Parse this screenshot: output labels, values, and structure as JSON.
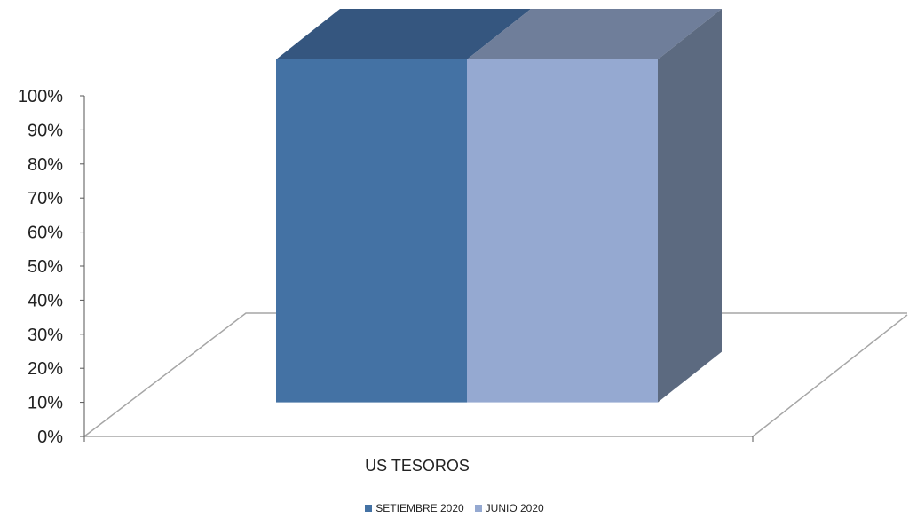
{
  "chart_data": {
    "type": "bar",
    "style": "3d-clustered-column",
    "categories": [
      "US TESOROS"
    ],
    "series": [
      {
        "name": "SETIEMBRE 2020",
        "values": [
          100
        ],
        "color": "#4472A4"
      },
      {
        "name": "JUNIO 2020",
        "values": [
          100
        ],
        "color": "#95A9D1"
      }
    ],
    "ylim": [
      0,
      100
    ],
    "yticks": [
      "0%",
      "10%",
      "20%",
      "30%",
      "40%",
      "50%",
      "60%",
      "70%",
      "80%",
      "90%",
      "100%"
    ],
    "legend_position": "bottom-center",
    "grid": false,
    "colors": {
      "series1_top": "#35567F",
      "series2_top": "#6F7E9A",
      "side": "#5C6A80",
      "floor_line": "#A6A6A6"
    }
  }
}
